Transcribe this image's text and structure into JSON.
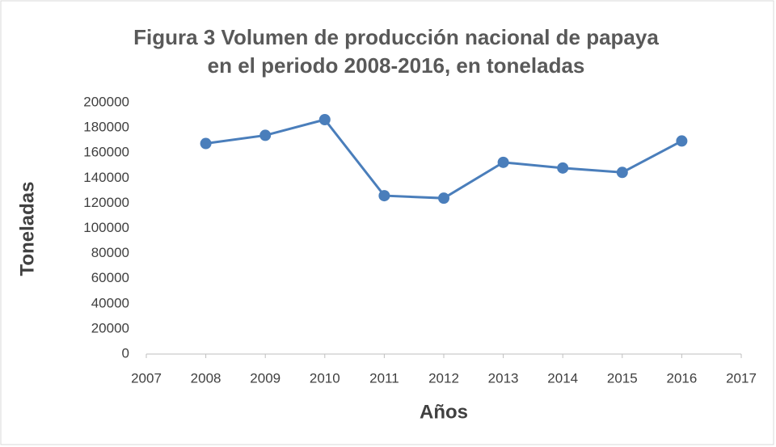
{
  "chart_data": {
    "type": "line",
    "title": [
      "Figura 3 Volumen de producción nacional de papaya",
      "en el periodo 2008-2016, en toneladas"
    ],
    "x_label": "Años",
    "y_label": "Toneladas",
    "x": [
      2008,
      2009,
      2010,
      2011,
      2012,
      2013,
      2014,
      2015,
      2016
    ],
    "series": [
      {
        "name": "Toneladas",
        "color": "#4a7ebb",
        "values": [
          167500,
          174000,
          186500,
          126000,
          124000,
          152500,
          148000,
          144500,
          169500
        ]
      }
    ],
    "xlim": [
      2007,
      2017
    ],
    "xticks": [
      2007,
      2008,
      2009,
      2010,
      2011,
      2012,
      2013,
      2014,
      2015,
      2016,
      2017
    ],
    "ylim": [
      0,
      200000
    ],
    "yticks": [
      0,
      20000,
      40000,
      60000,
      80000,
      100000,
      120000,
      140000,
      160000,
      180000,
      200000
    ],
    "grid": false,
    "legend": false
  }
}
